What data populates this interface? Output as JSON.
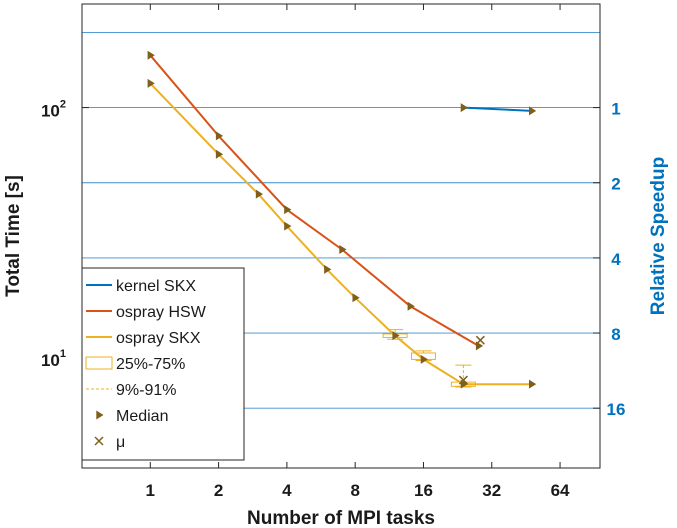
{
  "chart_data": {
    "type": "line",
    "xlabel": "Number of MPI tasks",
    "ylabel": "Total Time [s]",
    "ylabel_right": "Relative Speedup",
    "x_scale": "log2",
    "y_scale": "log10",
    "xlim": [
      0.5,
      96
    ],
    "ylim": [
      3.6,
      260
    ],
    "x_ticks": [
      1,
      2,
      4,
      8,
      16,
      32,
      64
    ],
    "x_tick_labels": [
      "1",
      "2",
      "4",
      "8",
      "16",
      "32",
      "64"
    ],
    "y_ticks": [
      {
        "value": 10,
        "base": "10",
        "exponent": "1"
      },
      {
        "value": 100,
        "base": "10",
        "exponent": "2"
      }
    ],
    "right_ticks": [
      {
        "value": 1,
        "label": "1",
        "time_value": 100
      },
      {
        "value": 2,
        "label": "2",
        "time_value": 50
      },
      {
        "value": 4,
        "label": "4",
        "time_value": 25
      },
      {
        "value": 8,
        "label": "8",
        "time_value": 12.5
      },
      {
        "value": 16,
        "label": "16",
        "time_value": 6.25
      }
    ],
    "speedup_gridlines": [
      0.5,
      1,
      2,
      4,
      8,
      16
    ],
    "speedup_reference_time": 100,
    "grid": "horizontal speedup lines",
    "legend_position": "bottom-left",
    "series": [
      {
        "name": "kernel SKX",
        "color": "#0072bd",
        "x": [
          24,
          48
        ],
        "y": [
          100,
          97
        ]
      },
      {
        "name": "ospray HSW",
        "color": "#d95319",
        "x": [
          1,
          2,
          4,
          7,
          14,
          28
        ],
        "y": [
          162,
          77,
          39,
          27,
          16,
          11.1
        ]
      },
      {
        "name": "ospray SKX",
        "color": "#edb120",
        "x": [
          1,
          2,
          3,
          4,
          6,
          8,
          12,
          16,
          24,
          48
        ],
        "y": [
          125,
          65,
          45,
          33.5,
          22.5,
          17.3,
          12.2,
          9.8,
          7.8,
          7.8
        ]
      }
    ],
    "boxes": [
      {
        "x": 12,
        "q1": 12.0,
        "q3": 12.4,
        "p9": 11.8,
        "p91": 12.9,
        "color": "#edb120"
      },
      {
        "x": 16,
        "q1": 9.8,
        "q3": 10.4,
        "p9": 9.7,
        "p91": 10.6,
        "color": "#edb120"
      },
      {
        "x": 24,
        "q1": 7.65,
        "q3": 7.95,
        "p9": 7.6,
        "p91": 9.3,
        "color": "#edb120"
      }
    ],
    "median_markers": {
      "color": "#7f5f1a",
      "points": [
        {
          "x": 1,
          "y": 162
        },
        {
          "x": 2,
          "y": 77
        },
        {
          "x": 4,
          "y": 39
        },
        {
          "x": 7,
          "y": 27
        },
        {
          "x": 14,
          "y": 16
        },
        {
          "x": 28,
          "y": 11.1
        },
        {
          "x": 1,
          "y": 125
        },
        {
          "x": 2,
          "y": 65
        },
        {
          "x": 3,
          "y": 45
        },
        {
          "x": 4,
          "y": 33.5
        },
        {
          "x": 6,
          "y": 22.5
        },
        {
          "x": 8,
          "y": 17.3
        },
        {
          "x": 12,
          "y": 12.2
        },
        {
          "x": 16,
          "y": 9.8
        },
        {
          "x": 24,
          "y": 7.8
        },
        {
          "x": 48,
          "y": 7.8
        },
        {
          "x": 24,
          "y": 100
        },
        {
          "x": 48,
          "y": 97
        }
      ]
    },
    "mean_markers": {
      "color": "#7f5f1a",
      "points": [
        {
          "x": 28.5,
          "y": 11.7
        },
        {
          "x": 24,
          "y": 8.1
        }
      ]
    },
    "legend": [
      {
        "label": "kernel SKX",
        "kind": "line",
        "color": "#0072bd"
      },
      {
        "label": "ospray HSW",
        "kind": "line",
        "color": "#d95319"
      },
      {
        "label": "ospray SKX",
        "kind": "line",
        "color": "#edb120"
      },
      {
        "label": "25%-75%",
        "kind": "box",
        "color": "#edb120"
      },
      {
        "label": "9%-91%",
        "kind": "dashed",
        "color": "#edb120"
      },
      {
        "label": "Median",
        "kind": "triangle",
        "color": "#7f5f1a"
      },
      {
        "label": "μ",
        "kind": "cross",
        "color": "#7f5f1a"
      }
    ]
  }
}
